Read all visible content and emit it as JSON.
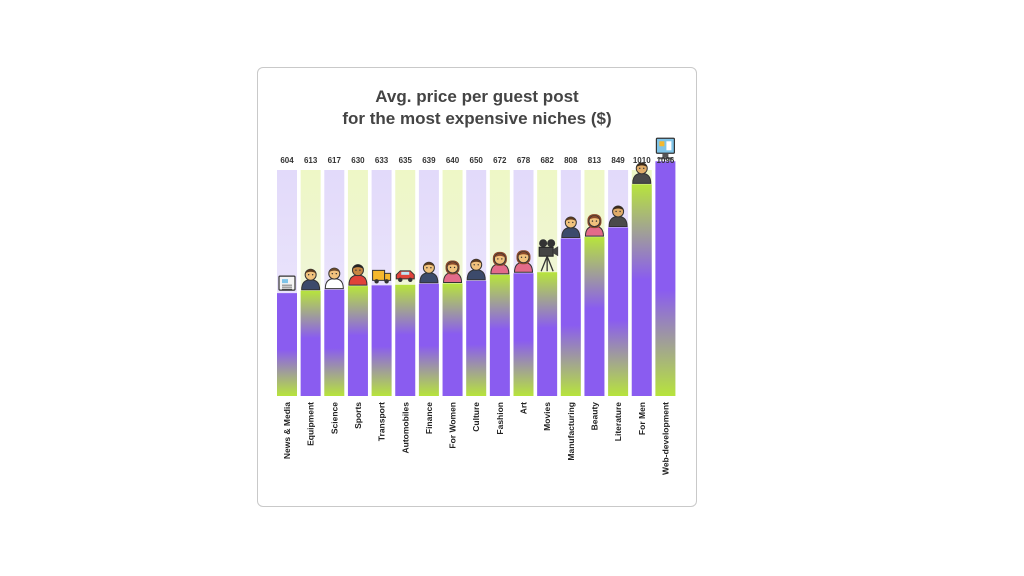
{
  "chart_data": {
    "type": "bar",
    "title": [
      "Avg. price per guest post",
      "for the most expensive niches ($)"
    ],
    "categories": [
      "News & Media",
      "Equipment",
      "Science",
      "Sports",
      "Transport",
      "Automobiles",
      "Finance",
      "For Women",
      "Culture",
      "Fashion",
      "Art",
      "Movies",
      "Manufacturing",
      "Beauty",
      "Literature",
      "For Men",
      "Web-development"
    ],
    "values": [
      604,
      613,
      617,
      630,
      633,
      635,
      639,
      640,
      650,
      672,
      678,
      682,
      808,
      813,
      849,
      1010,
      1096
    ],
    "value_labels": [
      "604",
      "613",
      "617",
      "630",
      "633",
      "635",
      "639",
      "640",
      "650",
      "672",
      "678",
      "682",
      "808",
      "813",
      "849",
      "1010",
      "1096"
    ],
    "icons": [
      "newspaper-icon",
      "person-icon",
      "scientist-icon",
      "athlete-icon",
      "truck-icon",
      "car-icon",
      "person-icon",
      "woman-icon",
      "person-icon",
      "woman-icon",
      "woman-icon",
      "movie-camera-icon",
      "person-icon",
      "woman-icon",
      "man-icon",
      "man-icon",
      "computer-icon"
    ],
    "colors": {
      "purple": "#8a5cf0",
      "green": "#b7e43c",
      "track_purple": "#e2dafa",
      "track_green": "#eef7c6"
    }
  }
}
